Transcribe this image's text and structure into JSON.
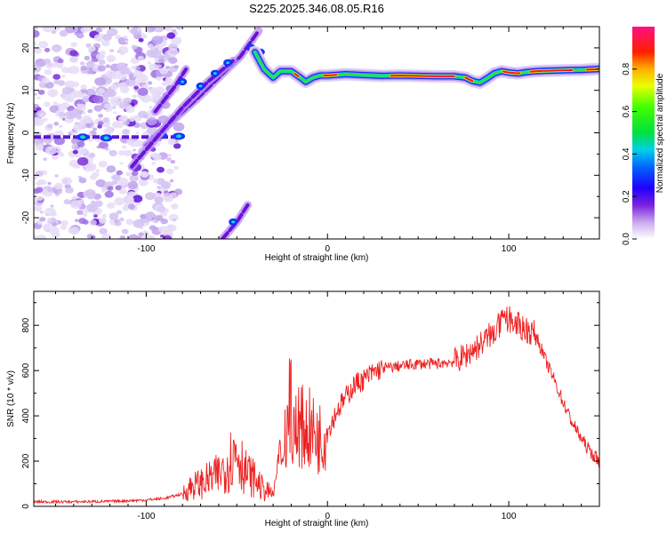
{
  "title": "S225.2025.346.08.05.R16",
  "chart_data": [
    {
      "type": "heatmap",
      "xlabel": "Height of straight line (km)",
      "ylabel": "Frequency (Hz)",
      "xlim": [
        -162,
        150
      ],
      "ylim": [
        -25,
        25
      ],
      "xticks": [
        -100,
        0,
        100
      ],
      "yticks": [
        -20,
        -10,
        0,
        10,
        20
      ],
      "colorbar": {
        "label": "Normalized spectral amplitude",
        "range": [
          0,
          1
        ],
        "ticks": [
          "0.0",
          "0.2",
          "0.4",
          "0.6",
          "0.8"
        ]
      },
      "ridge": {
        "x": [
          -40,
          -35,
          -30,
          -26,
          -20,
          -15,
          -12,
          -8,
          -4,
          0,
          10,
          20,
          30,
          40,
          50,
          60,
          70,
          76,
          80,
          84,
          88,
          92,
          96,
          100,
          105,
          110,
          115,
          120,
          130,
          140,
          150
        ],
        "y": [
          19,
          15,
          13,
          14.5,
          14.5,
          13,
          12,
          13,
          13.5,
          13.5,
          13.8,
          13.6,
          13.4,
          13.5,
          13.4,
          13.3,
          13.3,
          13,
          12.2,
          11.8,
          12.8,
          14,
          14.5,
          14.2,
          14,
          14.3,
          14.5,
          14.6,
          14.7,
          14.8,
          15
        ]
      }
    },
    {
      "type": "line",
      "xlabel": "Height of straight line (km)",
      "ylabel": "SNR (10 * v/v)",
      "xlim": [
        -162,
        150
      ],
      "ylim": [
        0,
        950
      ],
      "xticks": [
        -100,
        0,
        100
      ],
      "yticks": [
        0,
        200,
        400,
        600,
        800
      ],
      "series": [
        {
          "name": "SNR",
          "color": "#ee2222",
          "x": [
            -162,
            -140,
            -120,
            -100,
            -90,
            -80,
            -75,
            -70,
            -60,
            -55,
            -50,
            -45,
            -40,
            -35,
            -30,
            -25,
            -22,
            -20,
            -18,
            -15,
            -10,
            -5,
            0,
            5,
            10,
            15,
            20,
            25,
            30,
            40,
            50,
            60,
            70,
            75,
            80,
            85,
            90,
            95,
            100,
            105,
            110,
            115,
            120,
            125,
            130,
            135,
            140,
            145,
            150
          ],
          "values": [
            20,
            20,
            22,
            28,
            35,
            55,
            90,
            100,
            140,
            190,
            250,
            150,
            120,
            70,
            55,
            260,
            380,
            460,
            330,
            350,
            340,
            300,
            330,
            420,
            480,
            540,
            560,
            590,
            610,
            620,
            630,
            630,
            640,
            660,
            690,
            720,
            760,
            800,
            830,
            800,
            780,
            760,
            650,
            560,
            460,
            370,
            300,
            240,
            200
          ]
        }
      ]
    }
  ]
}
